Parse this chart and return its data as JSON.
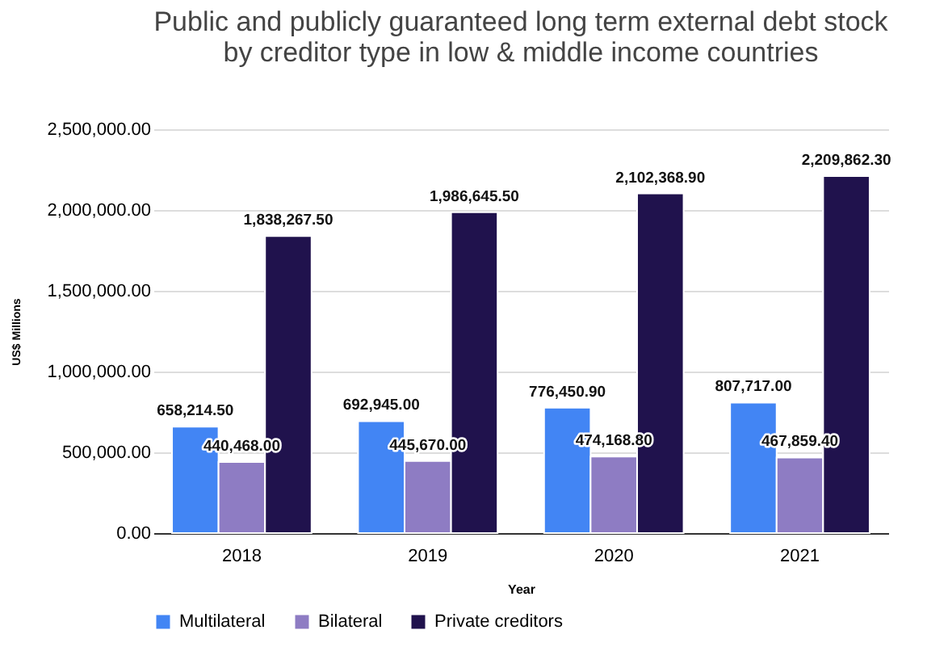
{
  "chart_data": {
    "type": "bar",
    "title": "Public and publicly guaranteed long term external debt stock by creditor type in low & middle income countries",
    "xlabel": "Year",
    "ylabel": "US$ Millions",
    "categories": [
      "2018",
      "2019",
      "2020",
      "2021"
    ],
    "series": [
      {
        "name": "Multilateral",
        "color": "#4285f4",
        "values": [
          658214.5,
          692945.0,
          776450.9,
          807717.0
        ],
        "value_labels": [
          "658,214.50",
          "692,945.00",
          "776,450.90",
          "807,717.00"
        ]
      },
      {
        "name": "Bilateral",
        "color": "#8e7cc3",
        "values": [
          440468.0,
          445670.0,
          474168.8,
          467859.4
        ],
        "value_labels": [
          "440,468.00",
          "445,670.00",
          "474,168.80",
          "467,859.40"
        ]
      },
      {
        "name": "Private creditors",
        "color": "#20124d",
        "values": [
          1838267.5,
          1986645.5,
          2102368.9,
          2209862.3
        ],
        "value_labels": [
          "1,838,267.50",
          "1,986,645.50",
          "2,102,368.90",
          "2,209,862.30"
        ]
      }
    ],
    "ylim": [
      0,
      2500000
    ],
    "yticks": [
      {
        "value": 0,
        "label": "0.00"
      },
      {
        "value": 500000,
        "label": "500,000.00"
      },
      {
        "value": 1000000,
        "label": "1,000,000.00"
      },
      {
        "value": 1500000,
        "label": "1,500,000.00"
      },
      {
        "value": 2000000,
        "label": "2,000,000.00"
      },
      {
        "value": 2500000,
        "label": "2,500,000.00"
      }
    ],
    "grid": "y",
    "legend": "bottom"
  }
}
